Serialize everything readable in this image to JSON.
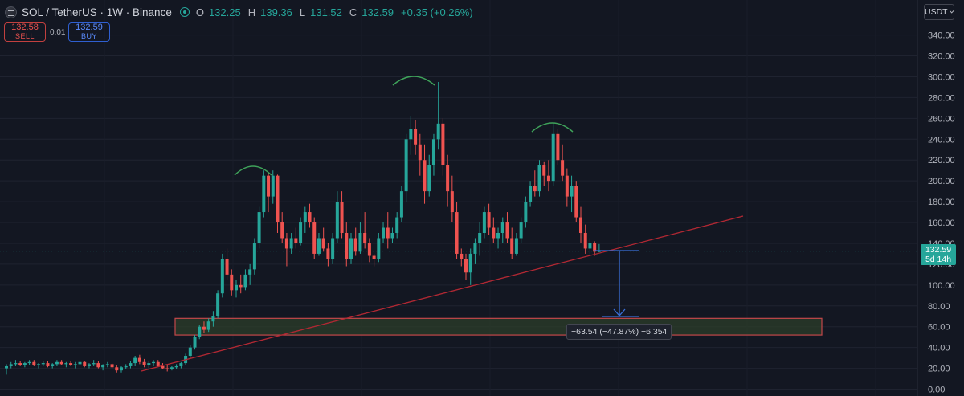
{
  "header": {
    "symbol": "SOL / TetherUS · 1W · Binance",
    "ohlc": [
      {
        "key": "O",
        "value": "132.25"
      },
      {
        "key": "H",
        "value": "139.36"
      },
      {
        "key": "L",
        "value": "131.52"
      },
      {
        "key": "C",
        "value": "132.59"
      }
    ],
    "change": "+0.35 (+0.26%)"
  },
  "trade": {
    "sell_price": "132.58",
    "sell_label": "SELL",
    "spread": "0.01",
    "buy_price": "132.59",
    "buy_label": "BUY"
  },
  "currency_button": "USDT",
  "price_tag": {
    "price": "132.59",
    "countdown": "5d 14h"
  },
  "measure_label": "−63.54 (−47.87%) −6,354",
  "colors": {
    "background": "#131722",
    "up": "#26a69a",
    "down": "#ef5350",
    "trendline": "#b22833",
    "arcs": "#3fa35a",
    "zone_fill": "#2c3d2a",
    "zone_border": "#c3474a",
    "measure": "#3a6fd8"
  },
  "chart_data": {
    "type": "candlestick",
    "title": "SOL / TetherUS · 1W · Binance",
    "interval": "1W",
    "y_axis": {
      "side": "right",
      "range": [
        0,
        350
      ],
      "ticks": [
        "340.00",
        "320.00",
        "300.00",
        "280.00",
        "260.00",
        "240.00",
        "220.00",
        "200.00",
        "180.00",
        "160.00",
        "140.00",
        "120.00",
        "100.00",
        "80.00",
        "60.00",
        "40.00",
        "20.00",
        "0.00"
      ]
    },
    "last_price": 132.59,
    "grid": true,
    "candles_approx": [
      [
        20,
        24,
        14,
        22
      ],
      [
        22,
        26,
        20,
        24
      ],
      [
        24,
        28,
        22,
        25
      ],
      [
        25,
        27,
        22,
        23
      ],
      [
        23,
        26,
        21,
        25
      ],
      [
        25,
        28,
        23,
        26
      ],
      [
        26,
        28,
        22,
        23
      ],
      [
        23,
        25,
        20,
        24
      ],
      [
        24,
        27,
        22,
        25
      ],
      [
        25,
        27,
        21,
        22
      ],
      [
        22,
        25,
        20,
        24
      ],
      [
        24,
        28,
        22,
        26
      ],
      [
        26,
        28,
        23,
        24
      ],
      [
        24,
        26,
        21,
        25
      ],
      [
        25,
        27,
        22,
        23
      ],
      [
        23,
        26,
        20,
        24
      ],
      [
        24,
        27,
        22,
        26
      ],
      [
        26,
        27,
        21,
        22
      ],
      [
        22,
        25,
        20,
        24
      ],
      [
        24,
        28,
        22,
        25
      ],
      [
        25,
        27,
        20,
        21
      ],
      [
        21,
        24,
        18,
        23
      ],
      [
        23,
        26,
        21,
        24
      ],
      [
        24,
        25,
        20,
        21
      ],
      [
        21,
        23,
        16,
        18
      ],
      [
        18,
        22,
        16,
        21
      ],
      [
        21,
        24,
        19,
        22
      ],
      [
        22,
        27,
        20,
        25
      ],
      [
        25,
        32,
        22,
        30
      ],
      [
        30,
        33,
        24,
        26
      ],
      [
        26,
        29,
        21,
        23
      ],
      [
        23,
        27,
        20,
        25
      ],
      [
        25,
        28,
        22,
        26
      ],
      [
        26,
        28,
        21,
        22
      ],
      [
        22,
        25,
        19,
        20
      ],
      [
        20,
        23,
        17,
        19
      ],
      [
        19,
        22,
        18,
        21
      ],
      [
        21,
        24,
        19,
        22
      ],
      [
        22,
        26,
        20,
        25
      ],
      [
        25,
        34,
        23,
        32
      ],
      [
        32,
        42,
        30,
        40
      ],
      [
        40,
        52,
        38,
        50
      ],
      [
        50,
        62,
        48,
        60
      ],
      [
        60,
        65,
        54,
        57
      ],
      [
        57,
        68,
        55,
        65
      ],
      [
        65,
        75,
        60,
        70
      ],
      [
        70,
        95,
        68,
        92
      ],
      [
        92,
        130,
        88,
        125
      ],
      [
        125,
        135,
        105,
        110
      ],
      [
        110,
        115,
        90,
        95
      ],
      [
        95,
        105,
        88,
        100
      ],
      [
        100,
        110,
        92,
        98
      ],
      [
        98,
        115,
        95,
        110
      ],
      [
        110,
        120,
        100,
        115
      ],
      [
        115,
        145,
        110,
        140
      ],
      [
        140,
        175,
        135,
        170
      ],
      [
        170,
        210,
        165,
        205
      ],
      [
        205,
        208,
        170,
        185
      ],
      [
        185,
        210,
        178,
        205
      ],
      [
        205,
        206,
        150,
        160
      ],
      [
        160,
        170,
        140,
        145
      ],
      [
        145,
        150,
        118,
        135
      ],
      [
        135,
        150,
        130,
        145
      ],
      [
        145,
        155,
        135,
        140
      ],
      [
        140,
        165,
        138,
        160
      ],
      [
        160,
        175,
        150,
        170
      ],
      [
        170,
        178,
        155,
        160
      ],
      [
        160,
        165,
        125,
        130
      ],
      [
        130,
        150,
        128,
        145
      ],
      [
        145,
        155,
        132,
        135
      ],
      [
        135,
        140,
        118,
        125
      ],
      [
        125,
        150,
        120,
        145
      ],
      [
        145,
        190,
        140,
        180
      ],
      [
        180,
        190,
        145,
        150
      ],
      [
        150,
        160,
        118,
        125
      ],
      [
        125,
        150,
        120,
        145
      ],
      [
        145,
        155,
        128,
        132
      ],
      [
        132,
        160,
        130,
        150
      ],
      [
        150,
        170,
        135,
        140
      ],
      [
        140,
        145,
        122,
        128
      ],
      [
        128,
        130,
        118,
        125
      ],
      [
        125,
        150,
        122,
        145
      ],
      [
        145,
        160,
        140,
        155
      ],
      [
        155,
        170,
        135,
        145
      ],
      [
        145,
        155,
        140,
        150
      ],
      [
        150,
        170,
        145,
        165
      ],
      [
        165,
        195,
        160,
        190
      ],
      [
        190,
        245,
        180,
        240
      ],
      [
        240,
        262,
        225,
        250
      ],
      [
        250,
        258,
        225,
        235
      ],
      [
        235,
        245,
        205,
        220
      ],
      [
        220,
        235,
        178,
        190
      ],
      [
        190,
        225,
        185,
        215
      ],
      [
        215,
        245,
        205,
        240
      ],
      [
        240,
        295,
        230,
        255
      ],
      [
        255,
        260,
        205,
        215
      ],
      [
        215,
        225,
        175,
        190
      ],
      [
        190,
        205,
        160,
        170
      ],
      [
        170,
        180,
        125,
        130
      ],
      [
        130,
        135,
        118,
        125
      ],
      [
        125,
        130,
        105,
        112
      ],
      [
        112,
        135,
        100,
        130
      ],
      [
        130,
        145,
        120,
        140
      ],
      [
        140,
        160,
        128,
        150
      ],
      [
        150,
        175,
        145,
        170
      ],
      [
        170,
        178,
        148,
        155
      ],
      [
        155,
        165,
        140,
        145
      ],
      [
        145,
        155,
        135,
        150
      ],
      [
        150,
        165,
        140,
        160
      ],
      [
        160,
        170,
        140,
        145
      ],
      [
        145,
        155,
        125,
        130
      ],
      [
        130,
        150,
        128,
        145
      ],
      [
        145,
        165,
        140,
        160
      ],
      [
        160,
        185,
        155,
        180
      ],
      [
        180,
        200,
        175,
        195
      ],
      [
        195,
        210,
        185,
        190
      ],
      [
        190,
        220,
        185,
        215
      ],
      [
        215,
        218,
        195,
        205
      ],
      [
        205,
        220,
        190,
        200
      ],
      [
        200,
        255,
        195,
        245
      ],
      [
        245,
        250,
        215,
        220
      ],
      [
        220,
        235,
        200,
        205
      ],
      [
        205,
        212,
        175,
        185
      ],
      [
        185,
        205,
        170,
        195
      ],
      [
        195,
        200,
        160,
        165
      ],
      [
        165,
        175,
        140,
        150
      ],
      [
        150,
        158,
        130,
        135
      ],
      [
        135,
        145,
        128,
        140
      ],
      [
        140,
        142,
        128,
        132
      ],
      [
        132.25,
        139.36,
        131.52,
        132.59
      ]
    ],
    "annotations": {
      "head_and_shoulders_arcs": 3,
      "trendline": true,
      "target_zone": [
        52,
        68
      ],
      "measure": {
        "from": 132.59,
        "to": 69.05,
        "change": -63.54,
        "percent": -47.87,
        "ticks": -6354
      }
    }
  }
}
